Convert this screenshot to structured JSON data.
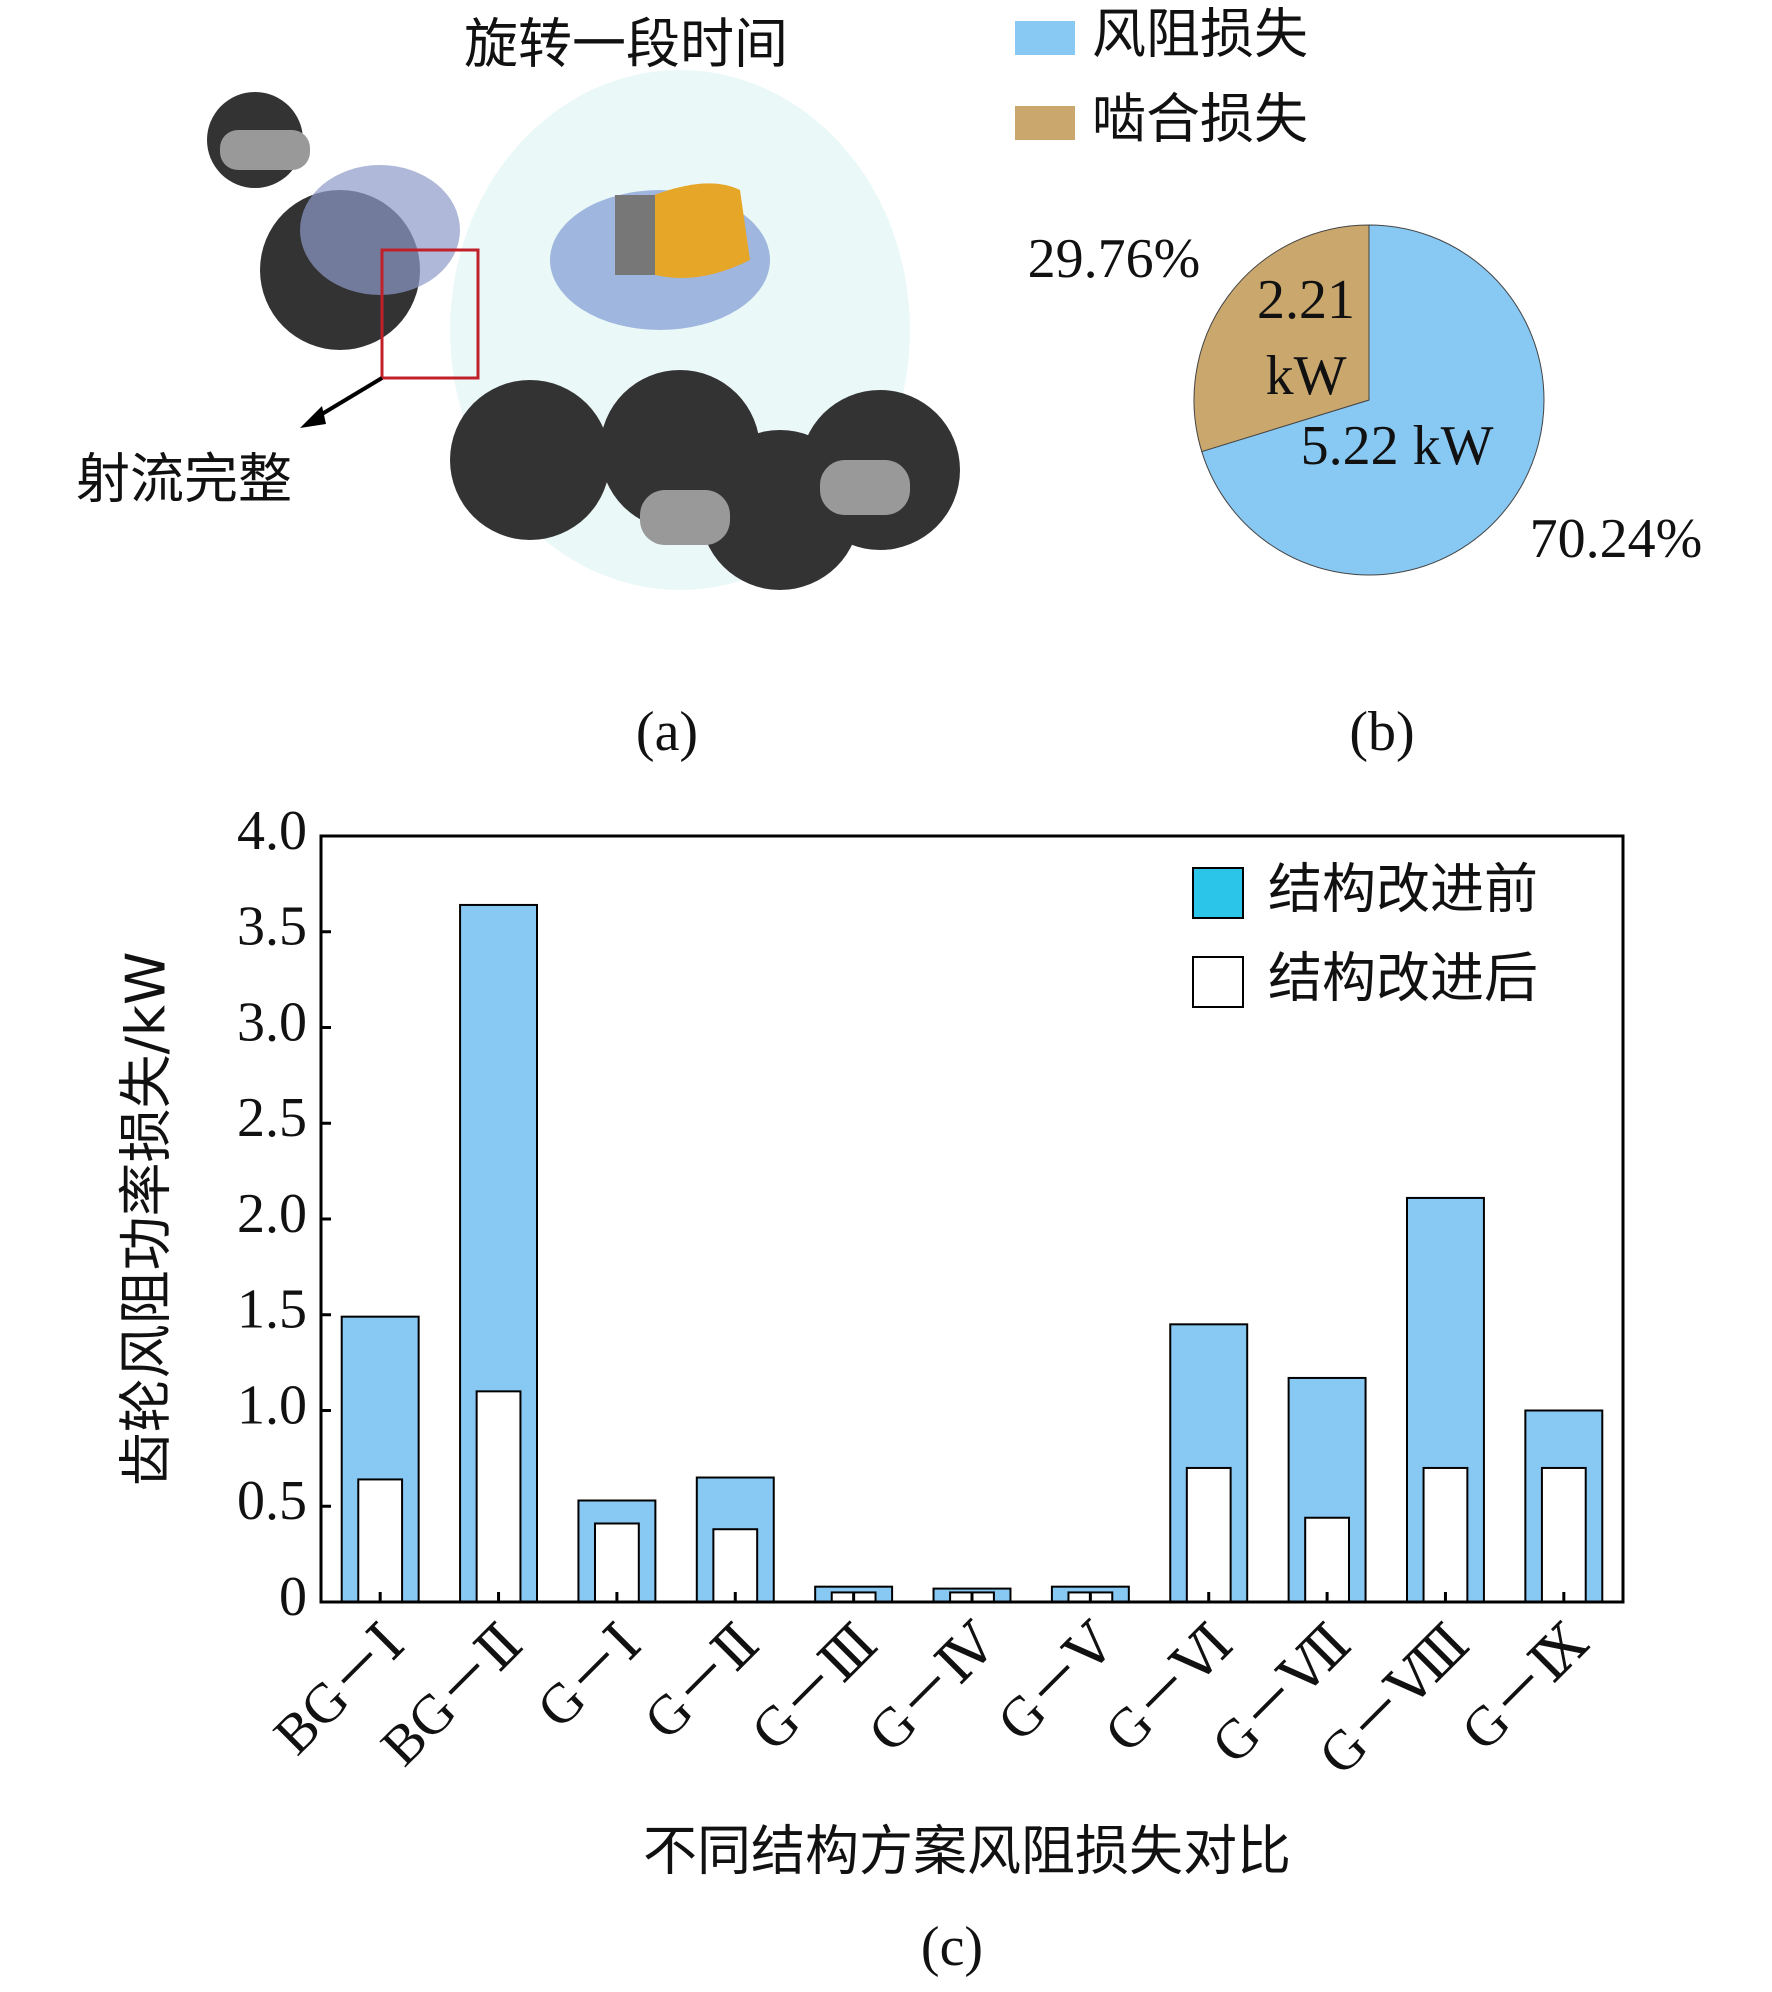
{
  "figure_a": {
    "title": "旋转一段时间",
    "annotation": "射流完整",
    "caption": "(a)"
  },
  "chart_data": [
    {
      "type": "pie",
      "caption": "(b)",
      "series": [
        {
          "name": "风阻损失",
          "color": "#88c9f4"
        },
        {
          "name": "啮合损失",
          "color": "#c9a76d"
        }
      ],
      "values": [
        70.24,
        29.76
      ],
      "value_labels": [
        "70.24%",
        "29.76%"
      ],
      "power_kw": [
        5.22,
        2.21
      ],
      "power_labels": [
        "5.22 kW",
        "2.21 kW"
      ]
    },
    {
      "type": "bar",
      "caption": "(c)",
      "xlabel": "不同结构方案风阻损失对比",
      "ylabel": "齿轮风阻功率损失/kW",
      "categories": [
        "BG－Ⅰ",
        "BG－Ⅱ",
        "G－Ⅰ",
        "G－Ⅱ",
        "G－Ⅲ",
        "G－Ⅳ",
        "G－Ⅴ",
        "G－Ⅵ",
        "G－Ⅶ",
        "G－Ⅷ",
        "G－Ⅸ"
      ],
      "series": [
        {
          "name": "结构改进前",
          "color": "#88c9f4",
          "values": [
            1.49,
            3.64,
            0.53,
            0.65,
            0.08,
            0.07,
            0.08,
            1.45,
            1.17,
            2.11,
            1.0
          ]
        },
        {
          "name": "结构改进后",
          "color": "#ffffff",
          "values": [
            0.64,
            1.1,
            0.41,
            0.38,
            0.05,
            0.05,
            0.05,
            0.7,
            0.44,
            0.7,
            0.7
          ]
        }
      ],
      "ylim": [
        0,
        4
      ],
      "yticks": [
        0,
        0.5,
        {
          "value": 1,
          "label": "1.0"
        },
        1.5,
        {
          "value": 2,
          "label": "2.0"
        },
        2.5,
        {
          "value": 3,
          "label": "3.0"
        },
        3.5,
        {
          "value": 4,
          "label": "4.0"
        }
      ],
      "legend": "upper right",
      "grid": false
    }
  ]
}
